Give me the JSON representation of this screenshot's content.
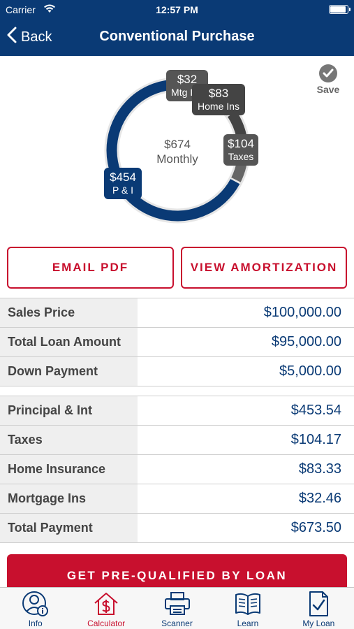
{
  "status": {
    "carrier": "Carrier",
    "time": "12:57 PM"
  },
  "nav": {
    "back_label": "Back",
    "title": "Conventional Purchase"
  },
  "donut": {
    "center_amount": "$674",
    "center_label": "Monthly",
    "segments": [
      {
        "name": "P & I",
        "amount": "$454",
        "value": 453.54,
        "color": "#0a3a75"
      },
      {
        "name": "Taxes",
        "amount": "$104",
        "value": 104.17,
        "color": "#555555"
      },
      {
        "name": "Home Ins",
        "amount": "$83",
        "value": 83.33,
        "color": "#444444"
      },
      {
        "name": "Mtg Ins",
        "amount": "$32",
        "value": 32.46,
        "color": "#666666"
      }
    ]
  },
  "save_label": "Save",
  "buttons": {
    "email": "EMAIL PDF",
    "amortization": "VIEW AMORTIZATION",
    "prequal": "GET PRE-QUALIFIED BY LOAN"
  },
  "loan_rows": [
    {
      "label": "Sales Price",
      "value": "$100,000.00"
    },
    {
      "label": "Total Loan Amount",
      "value": "$95,000.00"
    },
    {
      "label": "Down Payment",
      "value": "$5,000.00"
    }
  ],
  "payment_rows": [
    {
      "label": "Principal & Int",
      "value": "$453.54"
    },
    {
      "label": "Taxes",
      "value": "$104.17"
    },
    {
      "label": "Home Insurance",
      "value": "$83.33"
    },
    {
      "label": "Mortgage Ins",
      "value": "$32.46"
    },
    {
      "label": "Total Payment",
      "value": "$673.50"
    }
  ],
  "tabs": [
    {
      "label": "Info",
      "icon": "person-info-icon",
      "active": false
    },
    {
      "label": "Calculator",
      "icon": "house-dollar-icon",
      "active": true
    },
    {
      "label": "Scanner",
      "icon": "scanner-icon",
      "active": false
    },
    {
      "label": "Learn",
      "icon": "book-icon",
      "active": false
    },
    {
      "label": "My Loan",
      "icon": "document-check-icon",
      "active": false
    }
  ],
  "colors": {
    "navy": "#0a3a75",
    "red": "#c8102e"
  }
}
